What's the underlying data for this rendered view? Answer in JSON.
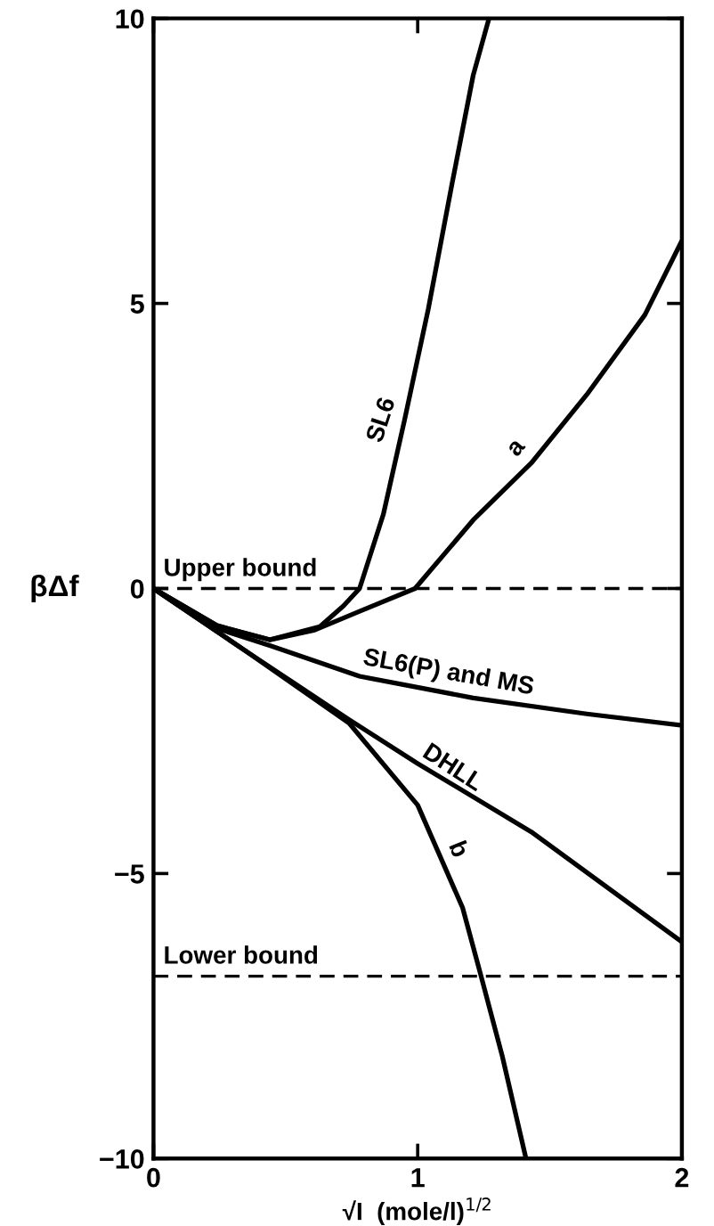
{
  "chart_data": {
    "type": "line",
    "xlabel": "√I  (mole/l)$^{1/2}$",
    "ylabel": "βΔf",
    "xlim": [
      0,
      2
    ],
    "ylim": [
      -10,
      10
    ],
    "xticks": [
      0,
      1,
      2
    ],
    "yticks": [
      -10,
      -5,
      0,
      5,
      10
    ],
    "grid": false,
    "legend": false,
    "marker": "none",
    "line_style": "solid",
    "series": [
      {
        "name": "SL6",
        "color": "#000000",
        "x": [
          0,
          0.24,
          0.44,
          0.63,
          0.72,
          0.78,
          0.87,
          0.95,
          1.04,
          1.13,
          1.21,
          1.27
        ],
        "values": [
          0,
          -0.65,
          -0.9,
          -0.67,
          -0.3,
          0,
          1.3,
          2.95,
          4.9,
          7.1,
          9.0,
          10
        ]
      },
      {
        "name": "a",
        "color": "#000000",
        "x": [
          0,
          0.24,
          0.44,
          0.61,
          0.78,
          0.99,
          1.21,
          1.43,
          1.64,
          1.86,
          2.0
        ],
        "values": [
          0,
          -0.65,
          -0.9,
          -0.73,
          -0.4,
          0,
          1.2,
          2.2,
          3.4,
          4.8,
          6.1
        ]
      },
      {
        "name": "SL6(P) and MS",
        "color": "#000000",
        "x": [
          0,
          0.24,
          0.44,
          0.78,
          1.21,
          1.64,
          2.0
        ],
        "values": [
          0,
          -0.7,
          -1.0,
          -1.54,
          -1.92,
          -2.2,
          -2.4
        ]
      },
      {
        "name": "DHLL",
        "color": "#000000",
        "x": [
          0,
          0.35,
          0.74,
          1.0,
          1.43,
          2.0
        ],
        "values": [
          0,
          -1.1,
          -2.3,
          -3.07,
          -4.27,
          -6.2
        ]
      },
      {
        "name": "b",
        "color": "#000000",
        "x": [
          0,
          0.35,
          0.74,
          1.0,
          1.17,
          1.24,
          1.32,
          1.41
        ],
        "values": [
          0,
          -1.1,
          -2.36,
          -3.8,
          -5.6,
          -6.8,
          -8.2,
          -10
        ]
      }
    ],
    "ref_lines": [
      {
        "axis": "y",
        "value": 0,
        "label": "Upper bound",
        "color": "#000000",
        "line_style": "dashed"
      },
      {
        "axis": "y",
        "value": -6.8,
        "label": "Lower bound",
        "color": "#000000",
        "line_style": "dashed"
      }
    ]
  }
}
